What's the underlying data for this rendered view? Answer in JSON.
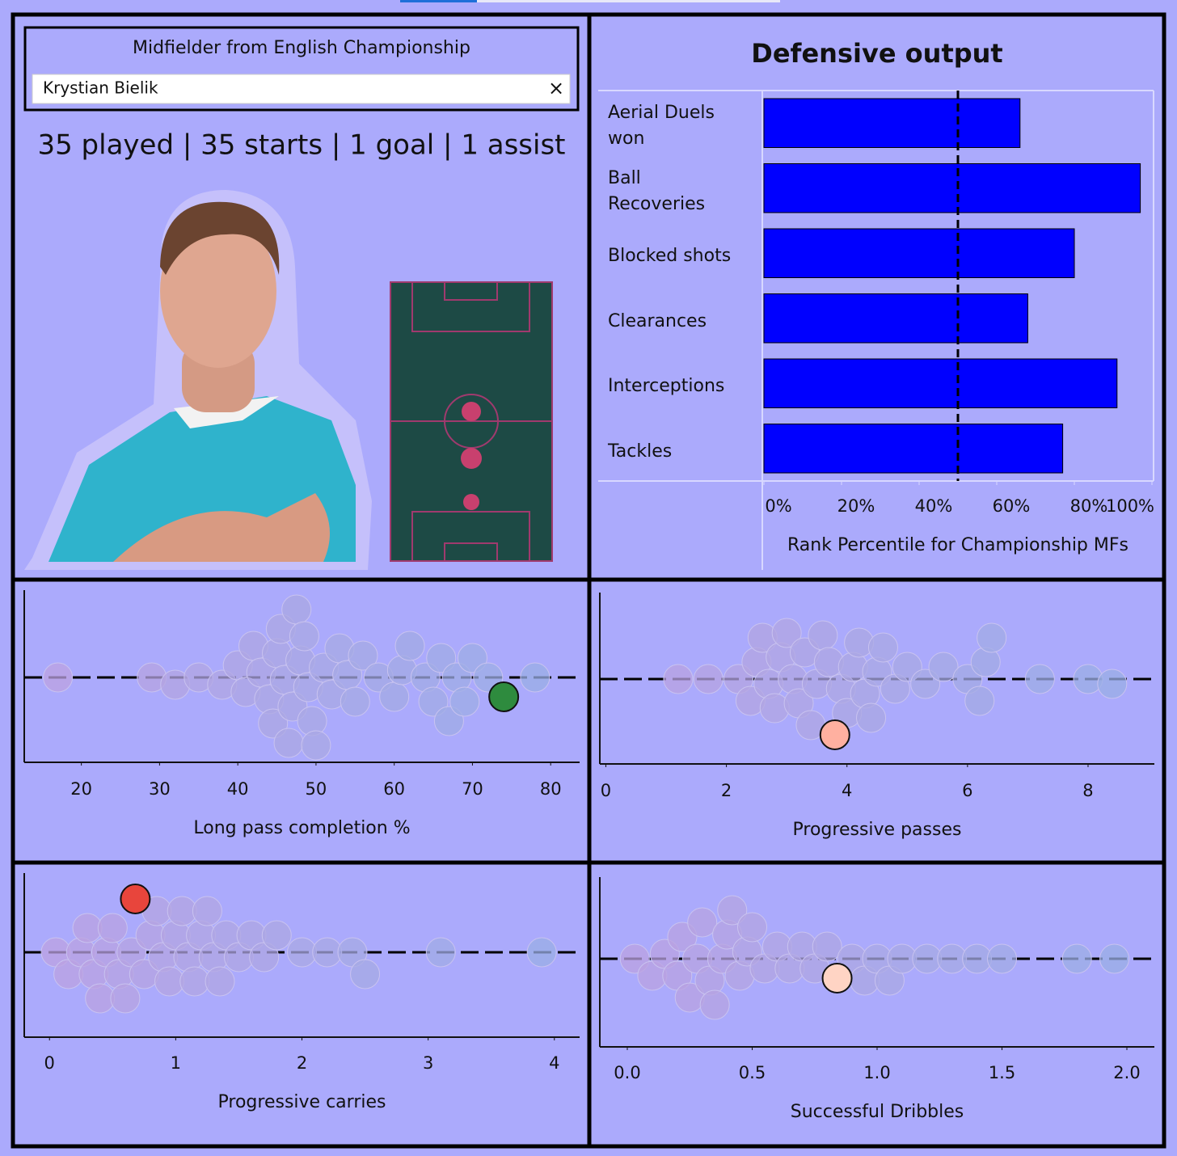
{
  "header": {
    "subtitle": "Midfielder from English Championship",
    "player": "Krystian Bielik",
    "stats": "35 played | 35 starts | 1 goal | 1 assist"
  },
  "chart_data": [
    {
      "type": "bar",
      "orientation": "horizontal",
      "title": "Defensive output",
      "categories": [
        "Aerial Duels won",
        "Ball Recoveries",
        "Blocked shots",
        "Clearances",
        "Interceptions",
        "Tackles"
      ],
      "values": [
        66,
        97,
        80,
        68,
        91,
        77
      ],
      "color": "#0000ff",
      "reference_line": 50,
      "xlim": [
        0,
        100
      ],
      "xticks": [
        {
          "value": 0,
          "label": "0%"
        },
        {
          "value": 20,
          "label": "20%"
        },
        {
          "value": 40,
          "label": "40%"
        },
        {
          "value": 60,
          "label": "60%"
        },
        {
          "value": 80,
          "label": "80%"
        },
        {
          "value": 100,
          "label": "100%"
        }
      ],
      "x_label": "Rank Percentile for Championship MFs"
    },
    {
      "type": "beeswarm",
      "x_label": "Long pass completion %",
      "values": [
        17,
        29,
        32,
        35,
        38,
        40,
        41,
        42,
        43,
        44,
        44.5,
        45,
        45.5,
        46,
        46.5,
        47,
        47.5,
        48,
        48.5,
        49,
        49.5,
        50,
        51,
        52,
        53,
        54,
        55,
        56,
        58,
        60,
        61,
        62,
        64,
        65,
        66,
        67,
        68,
        69,
        70,
        72,
        78
      ],
      "highlight": {
        "value": 74,
        "color": "#2e8b3e"
      },
      "xlim": [
        12.7,
        83.7
      ],
      "xticks": [
        20,
        30,
        40,
        50,
        60,
        70,
        80
      ]
    },
    {
      "type": "beeswarm",
      "x_label": "Progressive passes",
      "values": [
        1.2,
        1.7,
        2.2,
        2.4,
        2.5,
        2.6,
        2.7,
        2.8,
        2.9,
        3.0,
        3.1,
        3.2,
        3.3,
        3.4,
        3.5,
        3.6,
        3.7,
        3.9,
        4.0,
        4.1,
        4.2,
        4.3,
        4.4,
        4.5,
        4.6,
        4.8,
        5.0,
        5.3,
        5.6,
        6.0,
        6.2,
        6.3,
        6.4,
        7.2,
        8.0,
        8.4
      ],
      "highlight": {
        "value": 3.8,
        "color": "#ffb0a0"
      },
      "xlim": [
        -0.1,
        9.1
      ],
      "xticks": [
        0,
        2,
        4,
        6,
        8
      ]
    },
    {
      "type": "beeswarm",
      "x_label": "Progressive carries",
      "values": [
        0.05,
        0.15,
        0.25,
        0.3,
        0.35,
        0.4,
        0.45,
        0.5,
        0.55,
        0.6,
        0.65,
        0.75,
        0.8,
        0.85,
        0.9,
        0.95,
        1.0,
        1.05,
        1.1,
        1.15,
        1.2,
        1.25,
        1.3,
        1.35,
        1.4,
        1.5,
        1.6,
        1.7,
        1.8,
        2.0,
        2.2,
        2.4,
        2.5,
        3.1,
        3.9
      ],
      "highlight": {
        "value": 0.68,
        "color": "#e8453c"
      },
      "xlim": [
        -0.2,
        4.2
      ],
      "xticks": [
        0,
        1,
        2,
        3,
        4
      ]
    },
    {
      "type": "beeswarm",
      "x_label": "Successful Dribbles",
      "values": [
        0.03,
        0.1,
        0.15,
        0.2,
        0.22,
        0.25,
        0.28,
        0.3,
        0.33,
        0.35,
        0.38,
        0.4,
        0.42,
        0.45,
        0.48,
        0.5,
        0.55,
        0.6,
        0.65,
        0.7,
        0.75,
        0.8,
        0.9,
        0.95,
        1.0,
        1.05,
        1.1,
        1.2,
        1.3,
        1.4,
        1.5,
        1.8,
        1.95
      ],
      "highlight": {
        "value": 0.84,
        "color": "#ffd4c4"
      },
      "xlim": [
        -0.11,
        2.11
      ],
      "xticks": [
        {
          "value": 0,
          "label": "0.0"
        },
        0.5,
        {
          "value": 1,
          "label": "1.0"
        },
        1.5,
        {
          "value": 2,
          "label": "2.0"
        }
      ]
    }
  ]
}
